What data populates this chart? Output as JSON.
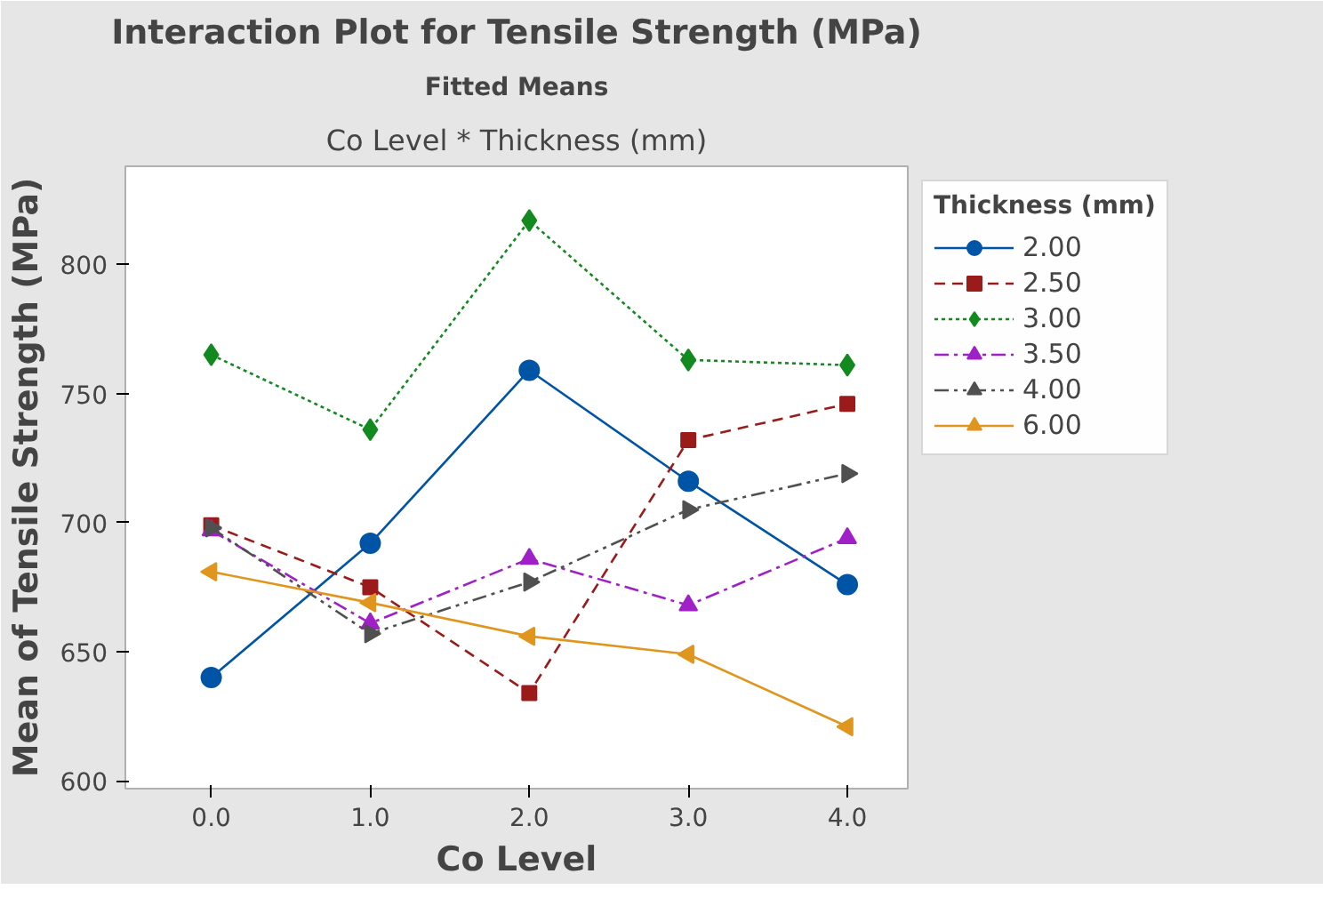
{
  "chart_data": {
    "type": "line",
    "title": "Interaction Plot for Tensile Strength (MPa)",
    "subtitle": "Fitted Means",
    "annotations": [
      "Co Level * Thickness (mm)"
    ],
    "xlabel": "Co Level",
    "ylabel": "Mean of Tensile Strength (MPa)",
    "legend_title": "Thickness (mm)",
    "x": [
      0,
      1,
      2,
      3,
      4
    ],
    "xlim": [
      -0.54,
      4.38
    ],
    "xticks": [
      {
        "value": 0,
        "label": "0.0"
      },
      {
        "value": 1,
        "label": "1.0"
      },
      {
        "value": 2,
        "label": "2.0"
      },
      {
        "value": 3,
        "label": "3.0"
      },
      {
        "value": 4,
        "label": "4.0"
      }
    ],
    "ylim": [
      597,
      838
    ],
    "yticks": [
      600,
      650,
      700,
      750,
      800
    ],
    "grid": false,
    "legend": "right",
    "series": [
      {
        "name": "2.00",
        "color": "#0054a6",
        "marker": "circle",
        "line_style": "solid",
        "values": [
          640,
          692,
          759,
          716,
          676
        ]
      },
      {
        "name": "2.50",
        "color": "#9b1b1b",
        "marker": "square",
        "line_style": "dashed",
        "values": [
          699,
          675,
          634,
          732,
          746
        ]
      },
      {
        "name": "3.00",
        "color": "#138a1f",
        "marker": "diamond",
        "line_style": "dotted",
        "values": [
          765,
          736,
          817,
          763,
          761
        ]
      },
      {
        "name": "3.50",
        "color": "#a020c8",
        "marker": "triangle",
        "line_style": "dashdot",
        "values": [
          697,
          661,
          686,
          668,
          694
        ]
      },
      {
        "name": "4.00",
        "color": "#505050",
        "marker": "triangle_right",
        "line_style": "dashdotdot",
        "values": [
          698,
          657,
          677,
          705,
          719
        ]
      },
      {
        "name": "6.00",
        "color": "#e0961e",
        "marker": "triangle_left",
        "line_style": "solid",
        "values": [
          681,
          669,
          656,
          649,
          621
        ]
      }
    ]
  }
}
